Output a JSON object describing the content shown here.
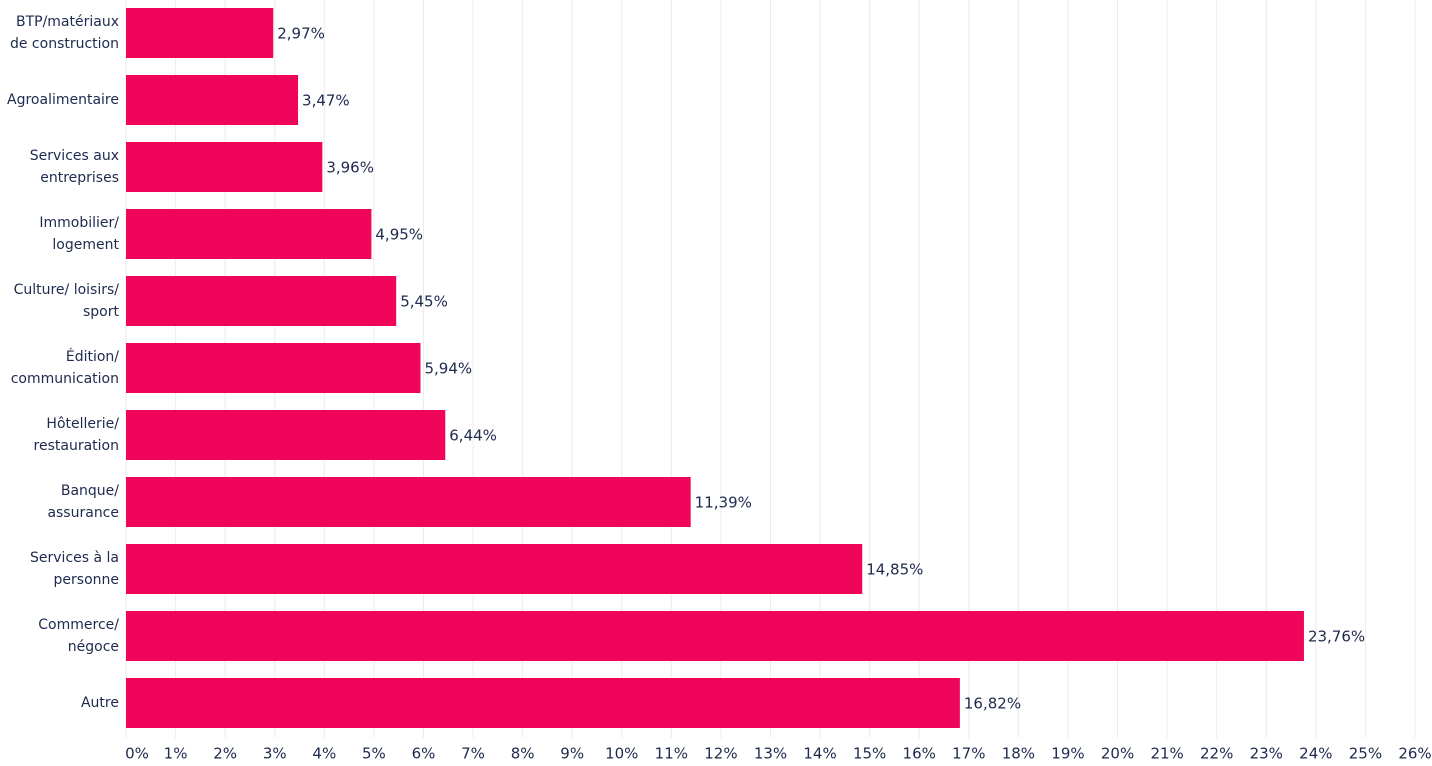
{
  "chart_data": {
    "type": "bar",
    "orientation": "horizontal",
    "categories": [
      "BTP/matériaux de construction",
      "Agroalimentaire",
      "Services aux entreprises",
      "Immobilier/ logement",
      "Culture/ loisirs/ sport",
      "Édition/ communication",
      "Hôtellerie/ restauration",
      "Banque/ assurance",
      "Services à la personne",
      "Commerce/ négoce",
      "Autre"
    ],
    "values": [
      2.97,
      3.47,
      3.96,
      4.95,
      5.45,
      5.94,
      6.44,
      11.39,
      14.85,
      23.76,
      16.82
    ],
    "value_labels": [
      "2,97%",
      "3,47%",
      "3,96%",
      "4,95%",
      "5,45%",
      "5,94%",
      "6,44%",
      "11,39%",
      "14,85%",
      "23,76%",
      "16,82%"
    ],
    "color": "#ef0559",
    "xlim": [
      0,
      26
    ],
    "xticks": [
      {
        "value": 0,
        "label": "0%"
      },
      {
        "value": 1,
        "label": "1%"
      },
      {
        "value": 2,
        "label": "2%"
      },
      {
        "value": 3,
        "label": "3%"
      },
      {
        "value": 4,
        "label": "4%"
      },
      {
        "value": 5,
        "label": "5%"
      },
      {
        "value": 6,
        "label": "6%"
      },
      {
        "value": 7,
        "label": "7%"
      },
      {
        "value": 8,
        "label": "8%"
      },
      {
        "value": 9,
        "label": "9%"
      },
      {
        "value": 10,
        "label": "10%"
      },
      {
        "value": 11,
        "label": "11%"
      },
      {
        "value": 12,
        "label": "12%"
      },
      {
        "value": 13,
        "label": "13%"
      },
      {
        "value": 14,
        "label": "14%"
      },
      {
        "value": 15,
        "label": "15%"
      },
      {
        "value": 16,
        "label": "16%"
      },
      {
        "value": 17,
        "label": "17%"
      },
      {
        "value": 18,
        "label": "18%"
      },
      {
        "value": 19,
        "label": "19%"
      },
      {
        "value": 20,
        "label": "20%"
      },
      {
        "value": 21,
        "label": "21%"
      },
      {
        "value": 22,
        "label": "22%"
      },
      {
        "value": 23,
        "label": "23%"
      },
      {
        "value": 24,
        "label": "24%"
      },
      {
        "value": 25,
        "label": "25%"
      },
      {
        "value": 26,
        "label": "26%"
      }
    ],
    "grid": true
  }
}
